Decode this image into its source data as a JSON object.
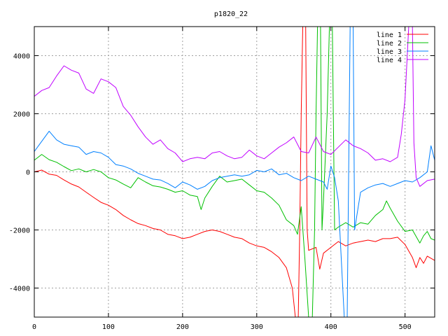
{
  "chart_data": {
    "type": "line",
    "title": "p1820_22",
    "xlabel": "",
    "ylabel": "",
    "xlim": [
      0,
      540
    ],
    "ylim": [
      -5000,
      5000
    ],
    "x_ticks": [
      0,
      100,
      200,
      300,
      400,
      500
    ],
    "y_ticks": [
      -4000,
      -2000,
      0,
      2000,
      4000
    ],
    "grid": true,
    "legend_position": "top-right",
    "series": [
      {
        "name": "line 1",
        "color": "#ff0000",
        "points": [
          [
            0,
            0
          ],
          [
            10,
            60
          ],
          [
            20,
            -80
          ],
          [
            30,
            -120
          ],
          [
            40,
            -280
          ],
          [
            50,
            -420
          ],
          [
            60,
            -520
          ],
          [
            70,
            -700
          ],
          [
            80,
            -880
          ],
          [
            90,
            -1050
          ],
          [
            100,
            -1150
          ],
          [
            110,
            -1300
          ],
          [
            120,
            -1500
          ],
          [
            130,
            -1650
          ],
          [
            140,
            -1780
          ],
          [
            150,
            -1850
          ],
          [
            160,
            -1950
          ],
          [
            170,
            -2000
          ],
          [
            180,
            -2150
          ],
          [
            190,
            -2200
          ],
          [
            200,
            -2300
          ],
          [
            210,
            -2250
          ],
          [
            220,
            -2150
          ],
          [
            230,
            -2050
          ],
          [
            240,
            -2000
          ],
          [
            250,
            -2050
          ],
          [
            260,
            -2150
          ],
          [
            270,
            -2250
          ],
          [
            280,
            -2300
          ],
          [
            290,
            -2450
          ],
          [
            300,
            -2550
          ],
          [
            310,
            -2600
          ],
          [
            320,
            -2750
          ],
          [
            330,
            -2950
          ],
          [
            340,
            -3300
          ],
          [
            348,
            -4000
          ],
          [
            352,
            -5000
          ],
          [
            356,
            -5000
          ],
          [
            358,
            -2000
          ],
          [
            360,
            2000
          ],
          [
            362,
            5000
          ],
          [
            366,
            5000
          ],
          [
            368,
            -2000
          ],
          [
            370,
            -2700
          ],
          [
            380,
            -2600
          ],
          [
            385,
            -3350
          ],
          [
            390,
            -2800
          ],
          [
            400,
            -2600
          ],
          [
            410,
            -2400
          ],
          [
            420,
            -2550
          ],
          [
            430,
            -2450
          ],
          [
            440,
            -2400
          ],
          [
            450,
            -2350
          ],
          [
            460,
            -2400
          ],
          [
            470,
            -2300
          ],
          [
            480,
            -2300
          ],
          [
            490,
            -2250
          ],
          [
            500,
            -2500
          ],
          [
            510,
            -2950
          ],
          [
            515,
            -3300
          ],
          [
            520,
            -2950
          ],
          [
            525,
            -3150
          ],
          [
            530,
            -2900
          ],
          [
            540,
            -3050
          ]
        ]
      },
      {
        "name": "line 2",
        "color": "#00c000",
        "points": [
          [
            0,
            400
          ],
          [
            10,
            600
          ],
          [
            20,
            420
          ],
          [
            30,
            330
          ],
          [
            40,
            180
          ],
          [
            50,
            40
          ],
          [
            60,
            100
          ],
          [
            70,
            0
          ],
          [
            80,
            80
          ],
          [
            90,
            0
          ],
          [
            100,
            -200
          ],
          [
            110,
            -280
          ],
          [
            120,
            -420
          ],
          [
            130,
            -550
          ],
          [
            140,
            -200
          ],
          [
            150,
            -350
          ],
          [
            160,
            -480
          ],
          [
            170,
            -520
          ],
          [
            180,
            -600
          ],
          [
            190,
            -700
          ],
          [
            200,
            -650
          ],
          [
            210,
            -800
          ],
          [
            220,
            -850
          ],
          [
            225,
            -1300
          ],
          [
            230,
            -900
          ],
          [
            240,
            -500
          ],
          [
            250,
            -150
          ],
          [
            260,
            -350
          ],
          [
            270,
            -300
          ],
          [
            280,
            -250
          ],
          [
            290,
            -450
          ],
          [
            300,
            -650
          ],
          [
            310,
            -700
          ],
          [
            320,
            -900
          ],
          [
            330,
            -1150
          ],
          [
            340,
            -1650
          ],
          [
            350,
            -1850
          ],
          [
            355,
            -2150
          ],
          [
            360,
            -1200
          ],
          [
            365,
            -3000
          ],
          [
            370,
            -5000
          ],
          [
            375,
            -5000
          ],
          [
            378,
            -2000
          ],
          [
            380,
            2000
          ],
          [
            382,
            5000
          ],
          [
            386,
            5000
          ],
          [
            388,
            -2000
          ],
          [
            390,
            -1000
          ],
          [
            395,
            2000
          ],
          [
            398,
            5000
          ],
          [
            402,
            5000
          ],
          [
            405,
            -2000
          ],
          [
            410,
            -1900
          ],
          [
            420,
            -1750
          ],
          [
            430,
            -1900
          ],
          [
            440,
            -1750
          ],
          [
            450,
            -1800
          ],
          [
            460,
            -1500
          ],
          [
            470,
            -1300
          ],
          [
            475,
            -1000
          ],
          [
            480,
            -1250
          ],
          [
            490,
            -1700
          ],
          [
            500,
            -2050
          ],
          [
            510,
            -2000
          ],
          [
            520,
            -2450
          ],
          [
            525,
            -2200
          ],
          [
            530,
            -2050
          ],
          [
            535,
            -2300
          ],
          [
            540,
            -2350
          ]
        ]
      },
      {
        "name": "line 3",
        "color": "#0080ff",
        "points": [
          [
            0,
            700
          ],
          [
            10,
            1050
          ],
          [
            20,
            1400
          ],
          [
            30,
            1100
          ],
          [
            40,
            950
          ],
          [
            50,
            900
          ],
          [
            60,
            850
          ],
          [
            70,
            600
          ],
          [
            80,
            700
          ],
          [
            90,
            650
          ],
          [
            100,
            500
          ],
          [
            110,
            250
          ],
          [
            120,
            200
          ],
          [
            130,
            100
          ],
          [
            140,
            -50
          ],
          [
            150,
            -150
          ],
          [
            160,
            -250
          ],
          [
            170,
            -280
          ],
          [
            180,
            -400
          ],
          [
            190,
            -550
          ],
          [
            200,
            -350
          ],
          [
            210,
            -450
          ],
          [
            220,
            -600
          ],
          [
            230,
            -500
          ],
          [
            240,
            -300
          ],
          [
            250,
            -200
          ],
          [
            260,
            -150
          ],
          [
            270,
            -100
          ],
          [
            280,
            -150
          ],
          [
            290,
            -100
          ],
          [
            300,
            50
          ],
          [
            310,
            0
          ],
          [
            320,
            100
          ],
          [
            330,
            -100
          ],
          [
            340,
            -50
          ],
          [
            350,
            -200
          ],
          [
            360,
            -300
          ],
          [
            370,
            -150
          ],
          [
            380,
            -250
          ],
          [
            390,
            -350
          ],
          [
            395,
            -600
          ],
          [
            400,
            200
          ],
          [
            405,
            -200
          ],
          [
            410,
            -1000
          ],
          [
            415,
            -3500
          ],
          [
            418,
            -5000
          ],
          [
            422,
            -5000
          ],
          [
            424,
            0
          ],
          [
            426,
            5000
          ],
          [
            430,
            5000
          ],
          [
            432,
            -2000
          ],
          [
            435,
            -1500
          ],
          [
            440,
            -700
          ],
          [
            450,
            -550
          ],
          [
            460,
            -450
          ],
          [
            470,
            -400
          ],
          [
            480,
            -500
          ],
          [
            490,
            -400
          ],
          [
            500,
            -300
          ],
          [
            510,
            -350
          ],
          [
            520,
            -200
          ],
          [
            530,
            0
          ],
          [
            535,
            900
          ],
          [
            540,
            400
          ]
        ]
      },
      {
        "name": "line 4",
        "color": "#c000ff",
        "points": [
          [
            0,
            2600
          ],
          [
            10,
            2800
          ],
          [
            20,
            2900
          ],
          [
            30,
            3300
          ],
          [
            40,
            3650
          ],
          [
            50,
            3500
          ],
          [
            60,
            3400
          ],
          [
            70,
            2850
          ],
          [
            80,
            2700
          ],
          [
            90,
            3200
          ],
          [
            100,
            3100
          ],
          [
            110,
            2900
          ],
          [
            120,
            2250
          ],
          [
            130,
            1950
          ],
          [
            140,
            1550
          ],
          [
            150,
            1200
          ],
          [
            160,
            950
          ],
          [
            170,
            1100
          ],
          [
            180,
            800
          ],
          [
            190,
            650
          ],
          [
            200,
            350
          ],
          [
            210,
            450
          ],
          [
            220,
            500
          ],
          [
            230,
            450
          ],
          [
            240,
            650
          ],
          [
            250,
            700
          ],
          [
            260,
            550
          ],
          [
            270,
            450
          ],
          [
            280,
            500
          ],
          [
            290,
            750
          ],
          [
            300,
            550
          ],
          [
            310,
            450
          ],
          [
            320,
            650
          ],
          [
            330,
            850
          ],
          [
            340,
            1000
          ],
          [
            350,
            1200
          ],
          [
            360,
            700
          ],
          [
            370,
            650
          ],
          [
            380,
            1200
          ],
          [
            390,
            700
          ],
          [
            400,
            600
          ],
          [
            410,
            850
          ],
          [
            420,
            1100
          ],
          [
            430,
            900
          ],
          [
            440,
            800
          ],
          [
            450,
            650
          ],
          [
            460,
            400
          ],
          [
            470,
            450
          ],
          [
            480,
            350
          ],
          [
            490,
            500
          ],
          [
            495,
            1300
          ],
          [
            500,
            2500
          ],
          [
            505,
            5000
          ],
          [
            510,
            5000
          ],
          [
            512,
            1000
          ],
          [
            515,
            -200
          ],
          [
            520,
            -500
          ],
          [
            530,
            -300
          ],
          [
            540,
            -250
          ]
        ]
      }
    ]
  }
}
